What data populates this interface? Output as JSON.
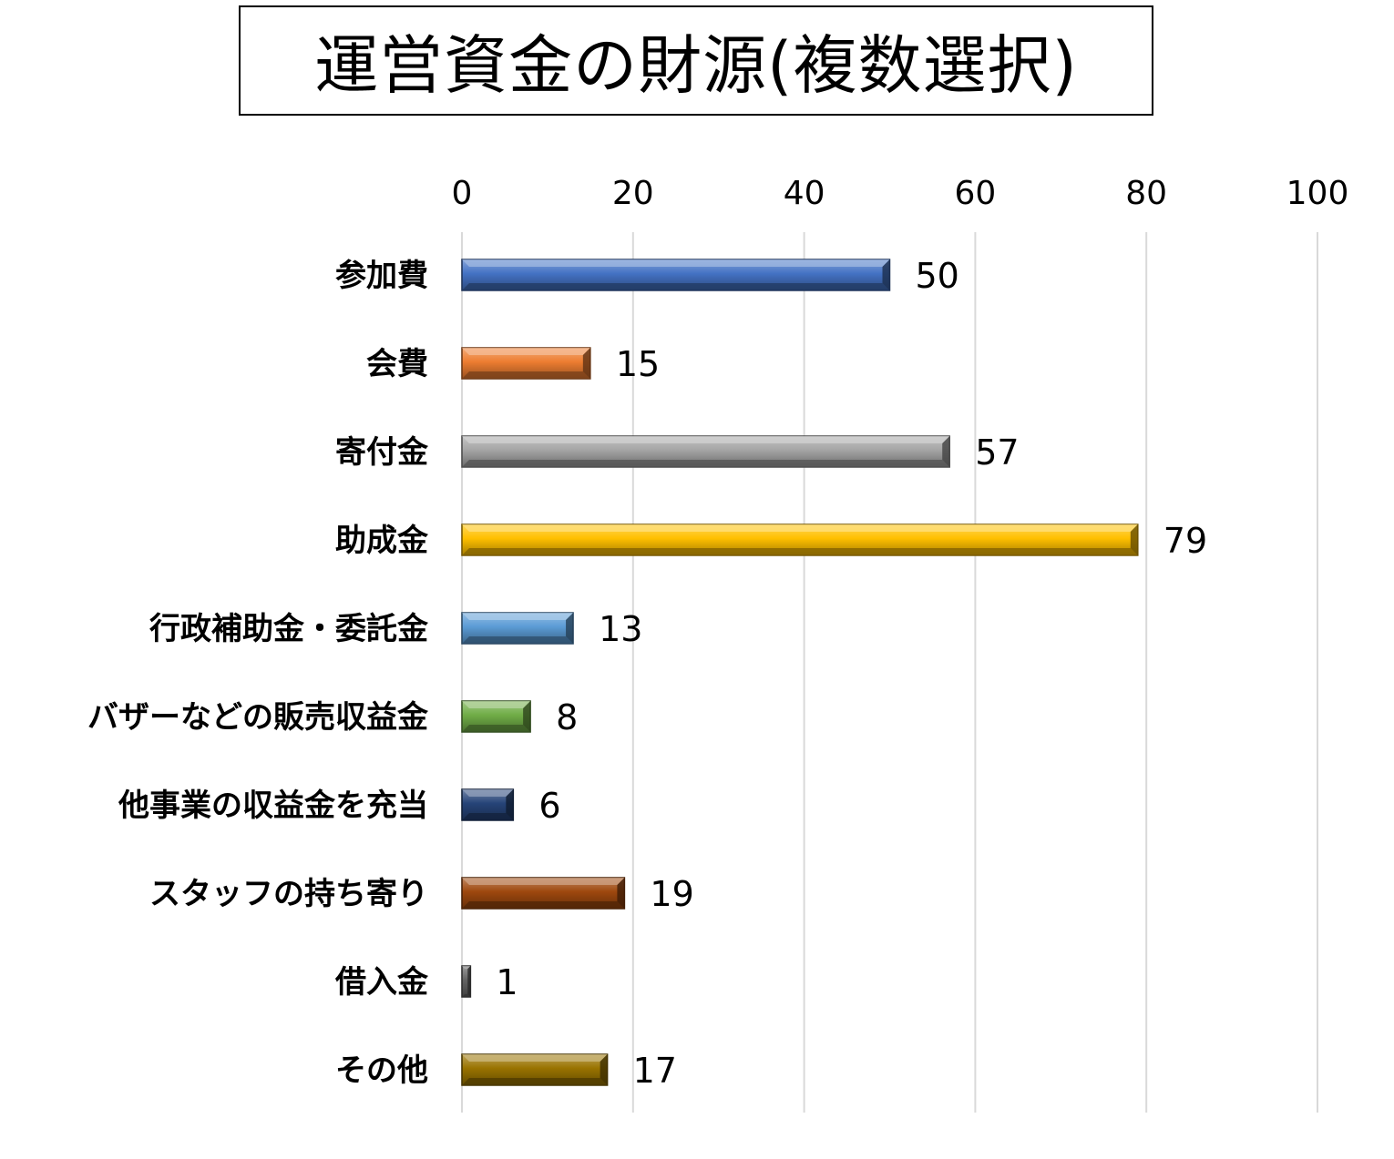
{
  "title": "運営資金の財源(複数選択)",
  "chart_data": {
    "type": "bar",
    "orientation": "horizontal",
    "categories": [
      "参加費",
      "会費",
      "寄付金",
      "助成金",
      "行政補助金・委託金",
      "バザーなどの販売収益金",
      "他事業の収益金を充当",
      "スタッフの持ち寄り",
      "借入金",
      "その他"
    ],
    "values": [
      50,
      15,
      57,
      79,
      13,
      8,
      6,
      19,
      1,
      17
    ],
    "xlim": [
      0,
      100
    ],
    "xticks": [
      0,
      20,
      40,
      60,
      80,
      100
    ],
    "grid": true,
    "axis_position": "top",
    "bar_colors": [
      "#4472c4",
      "#ed7d31",
      "#a5a5a5",
      "#ffc000",
      "#5b9bd5",
      "#70ad47",
      "#264478",
      "#9e480e",
      "#636363",
      "#997300"
    ]
  }
}
